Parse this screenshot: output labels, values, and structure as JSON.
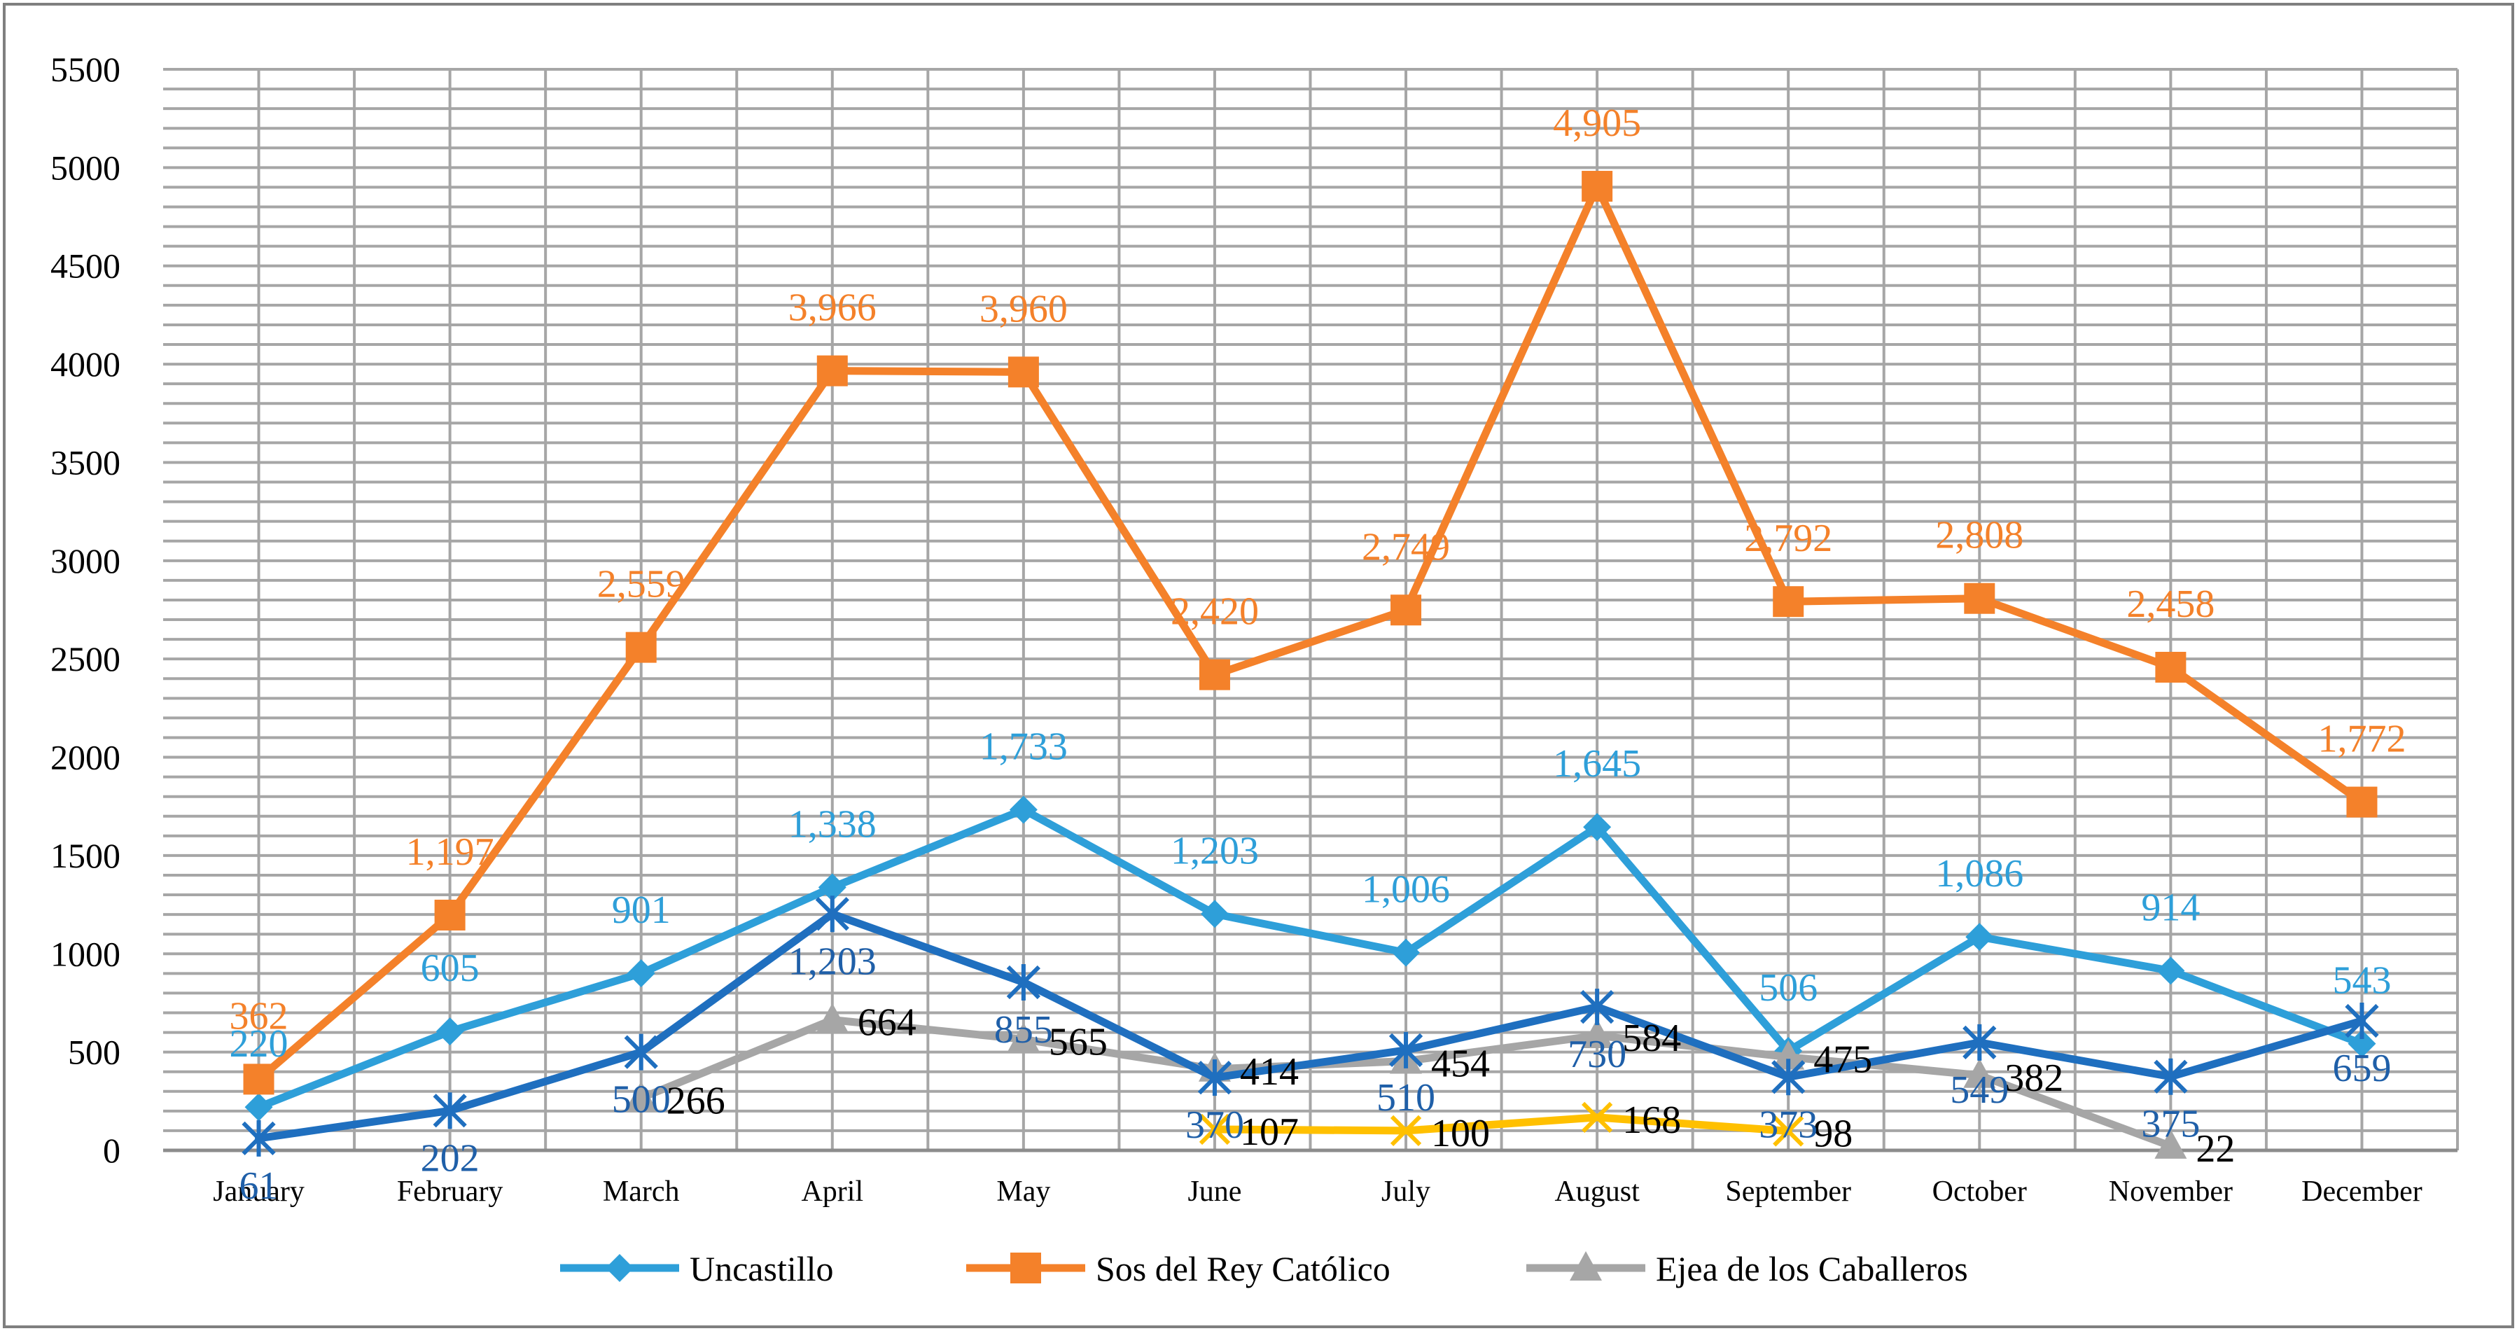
{
  "chart_data": {
    "type": "line",
    "title": "",
    "xlabel": "",
    "ylabel": "",
    "ylim": [
      0,
      5500
    ],
    "yticks": [
      "0",
      "500",
      "1000",
      "1500",
      "2000",
      "2500",
      "3000",
      "3500",
      "4000",
      "4500",
      "5000",
      "5500"
    ],
    "categories": [
      "January",
      "February",
      "March",
      "April",
      "May",
      "June",
      "July",
      "August",
      "September",
      "October",
      "November",
      "December"
    ],
    "series": [
      {
        "name": "Uncastillo",
        "color": "#2e9fd9",
        "marker": "diamond",
        "in_legend": true,
        "values": [
          220,
          605,
          901,
          1338,
          1733,
          1203,
          1006,
          1645,
          506,
          1086,
          914,
          543
        ],
        "labels": [
          "220",
          "605",
          "901",
          "1,338",
          "1,733",
          "1,203",
          "1,006",
          "1,645",
          "506",
          "1,086",
          "914",
          "543"
        ],
        "label_pos": "above"
      },
      {
        "name": "Sos del Rey Católico",
        "color": "#f4812a",
        "marker": "square",
        "in_legend": true,
        "values": [
          362,
          1197,
          2559,
          3966,
          3960,
          2420,
          2749,
          4905,
          2792,
          2808,
          2458,
          1772
        ],
        "labels": [
          "362",
          "1,197",
          "2,559",
          "3,966",
          "3,960",
          "2,420",
          "2,749",
          "4,905",
          "2,792",
          "2,808",
          "2,458",
          "1,772"
        ],
        "label_pos": "above"
      },
      {
        "name": "Ejea de los Caballeros",
        "color": "#a6a6a6",
        "marker": "triangle",
        "in_legend": true,
        "values": [
          null,
          null,
          266,
          664,
          565,
          414,
          454,
          584,
          475,
          382,
          22,
          null
        ],
        "labels": [
          null,
          null,
          "266",
          "664",
          "565",
          "414",
          "454",
          "584",
          "475",
          "382",
          "22",
          null
        ],
        "label_color": "#000000",
        "label_pos": "right"
      },
      {
        "name": "",
        "color": "#ffc000",
        "marker": "x",
        "in_legend": false,
        "values": [
          null,
          null,
          null,
          null,
          null,
          107,
          100,
          168,
          98,
          null,
          null,
          null
        ],
        "labels": [
          null,
          null,
          null,
          null,
          null,
          "107",
          "100",
          "168",
          "98",
          null,
          null,
          null
        ],
        "label_color": "#000000",
        "label_pos": "right"
      },
      {
        "name": "",
        "color": "#1f6fbf",
        "marker": "star",
        "in_legend": false,
        "values": [
          61,
          202,
          500,
          1203,
          855,
          370,
          510,
          730,
          373,
          549,
          375,
          659
        ],
        "labels": [
          "61",
          "202",
          "500",
          "1,203",
          "855",
          "370",
          "510",
          "730",
          "373",
          "549",
          "375",
          "659"
        ],
        "label_color": "#1f5fa8",
        "label_pos": "below"
      }
    ],
    "grid": true,
    "legend": "bottom"
  }
}
